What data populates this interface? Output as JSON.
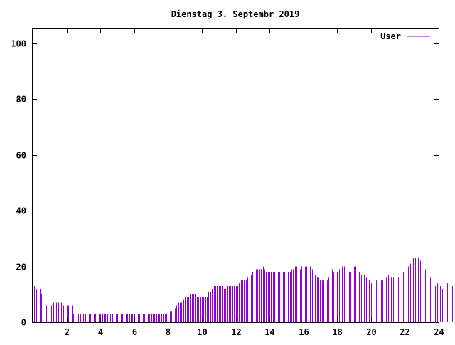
{
  "chart_data": {
    "type": "bar",
    "title": "Dienstag 3. Septembr 2019",
    "xlabel": "",
    "ylabel": "",
    "xlim": [
      0,
      24
    ],
    "ylim": [
      0,
      105
    ],
    "x_ticks": [
      2,
      4,
      6,
      8,
      10,
      12,
      14,
      16,
      18,
      20,
      22,
      24
    ],
    "y_ticks": [
      0,
      20,
      40,
      60,
      80,
      100
    ],
    "grid": false,
    "legend": {
      "position": "top-right",
      "entries": [
        "User"
      ]
    },
    "series": [
      {
        "name": "User",
        "color": "#9400d3",
        "interval_hours": 0.1,
        "values": [
          13,
          13,
          12,
          12,
          12,
          10,
          9,
          6,
          6,
          6,
          6,
          6,
          7,
          8,
          7,
          7,
          7,
          7,
          6,
          6,
          6,
          6,
          6,
          6,
          3,
          3,
          3,
          3,
          3,
          3,
          3,
          3,
          3,
          3,
          3,
          3,
          3,
          3,
          3,
          3,
          3,
          3,
          3,
          3,
          3,
          3,
          3,
          3,
          3,
          3,
          3,
          3,
          3,
          3,
          3,
          3,
          3,
          3,
          3,
          3,
          3,
          3,
          3,
          3,
          3,
          3,
          3,
          3,
          3,
          3,
          3,
          3,
          3,
          3,
          3,
          3,
          3,
          3,
          3,
          3,
          4,
          4,
          4,
          4,
          5,
          6,
          7,
          7,
          7,
          8,
          9,
          9,
          9,
          10,
          10,
          10,
          10,
          9,
          9,
          9,
          9,
          9,
          9,
          9,
          11,
          11,
          12,
          13,
          13,
          13,
          13,
          13,
          13,
          12,
          12,
          13,
          13,
          13,
          13,
          13,
          13,
          13,
          14,
          15,
          15,
          15,
          15,
          16,
          16,
          17,
          18,
          19,
          19,
          19,
          19,
          19,
          20,
          19,
          18,
          18,
          18,
          18,
          18,
          18,
          18,
          18,
          18,
          19,
          18,
          18,
          18,
          18,
          18,
          19,
          19,
          20,
          20,
          20,
          19,
          20,
          20,
          20,
          20,
          20,
          20,
          19,
          18,
          17,
          16,
          16,
          15,
          15,
          15,
          15,
          15,
          16,
          19,
          19,
          18,
          17,
          18,
          19,
          19,
          20,
          20,
          20,
          19,
          18,
          18,
          20,
          20,
          20,
          19,
          18,
          17,
          18,
          17,
          16,
          15,
          15,
          14,
          14,
          14,
          15,
          15,
          15,
          15,
          15,
          16,
          16,
          17,
          16,
          16,
          16,
          16,
          16,
          16,
          16,
          17,
          18,
          19,
          20,
          20,
          21,
          23,
          23,
          23,
          23,
          23,
          22,
          21,
          19,
          19,
          19,
          18,
          16,
          14,
          14,
          13,
          14,
          13,
          13,
          12,
          14,
          14,
          14,
          14,
          14,
          13,
          13,
          13
        ]
      }
    ]
  }
}
